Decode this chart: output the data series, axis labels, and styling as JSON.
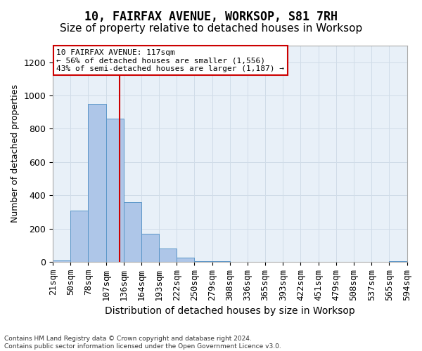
{
  "title": "10, FAIRFAX AVENUE, WORKSOP, S81 7RH",
  "subtitle": "Size of property relative to detached houses in Worksop",
  "xlabel": "Distribution of detached houses by size in Worksop",
  "ylabel": "Number of detached properties",
  "bar_values": [
    10,
    310,
    950,
    860,
    360,
    170,
    80,
    25,
    5,
    2,
    1,
    0,
    0,
    0,
    0,
    0,
    0,
    0,
    0,
    2
  ],
  "bin_labels": [
    "21sqm",
    "50sqm",
    "78sqm",
    "107sqm",
    "136sqm",
    "164sqm",
    "193sqm",
    "222sqm",
    "250sqm",
    "279sqm",
    "308sqm",
    "336sqm",
    "365sqm",
    "393sqm",
    "422sqm",
    "451sqm",
    "479sqm",
    "508sqm",
    "537sqm",
    "565sqm",
    "594sqm"
  ],
  "bar_color": "#aec6e8",
  "bar_edge_color": "#5a96c8",
  "ylim": [
    0,
    1300
  ],
  "yticks": [
    0,
    200,
    400,
    600,
    800,
    1000,
    1200
  ],
  "property_line_x": 3.28,
  "annotation_line1": "10 FAIRFAX AVENUE: 117sqm",
  "annotation_line2": "← 56% of detached houses are smaller (1,556)",
  "annotation_line3": "43% of semi-detached houses are larger (1,187) →",
  "annotation_box_color": "#ffffff",
  "annotation_border_color": "#cc0000",
  "footer_text": "Contains HM Land Registry data © Crown copyright and database right 2024.\nContains public sector information licensed under the Open Government Licence v3.0.",
  "grid_color": "#d0dce8",
  "background_color": "#e8f0f8",
  "title_fontsize": 12,
  "subtitle_fontsize": 11,
  "axis_fontsize": 9
}
